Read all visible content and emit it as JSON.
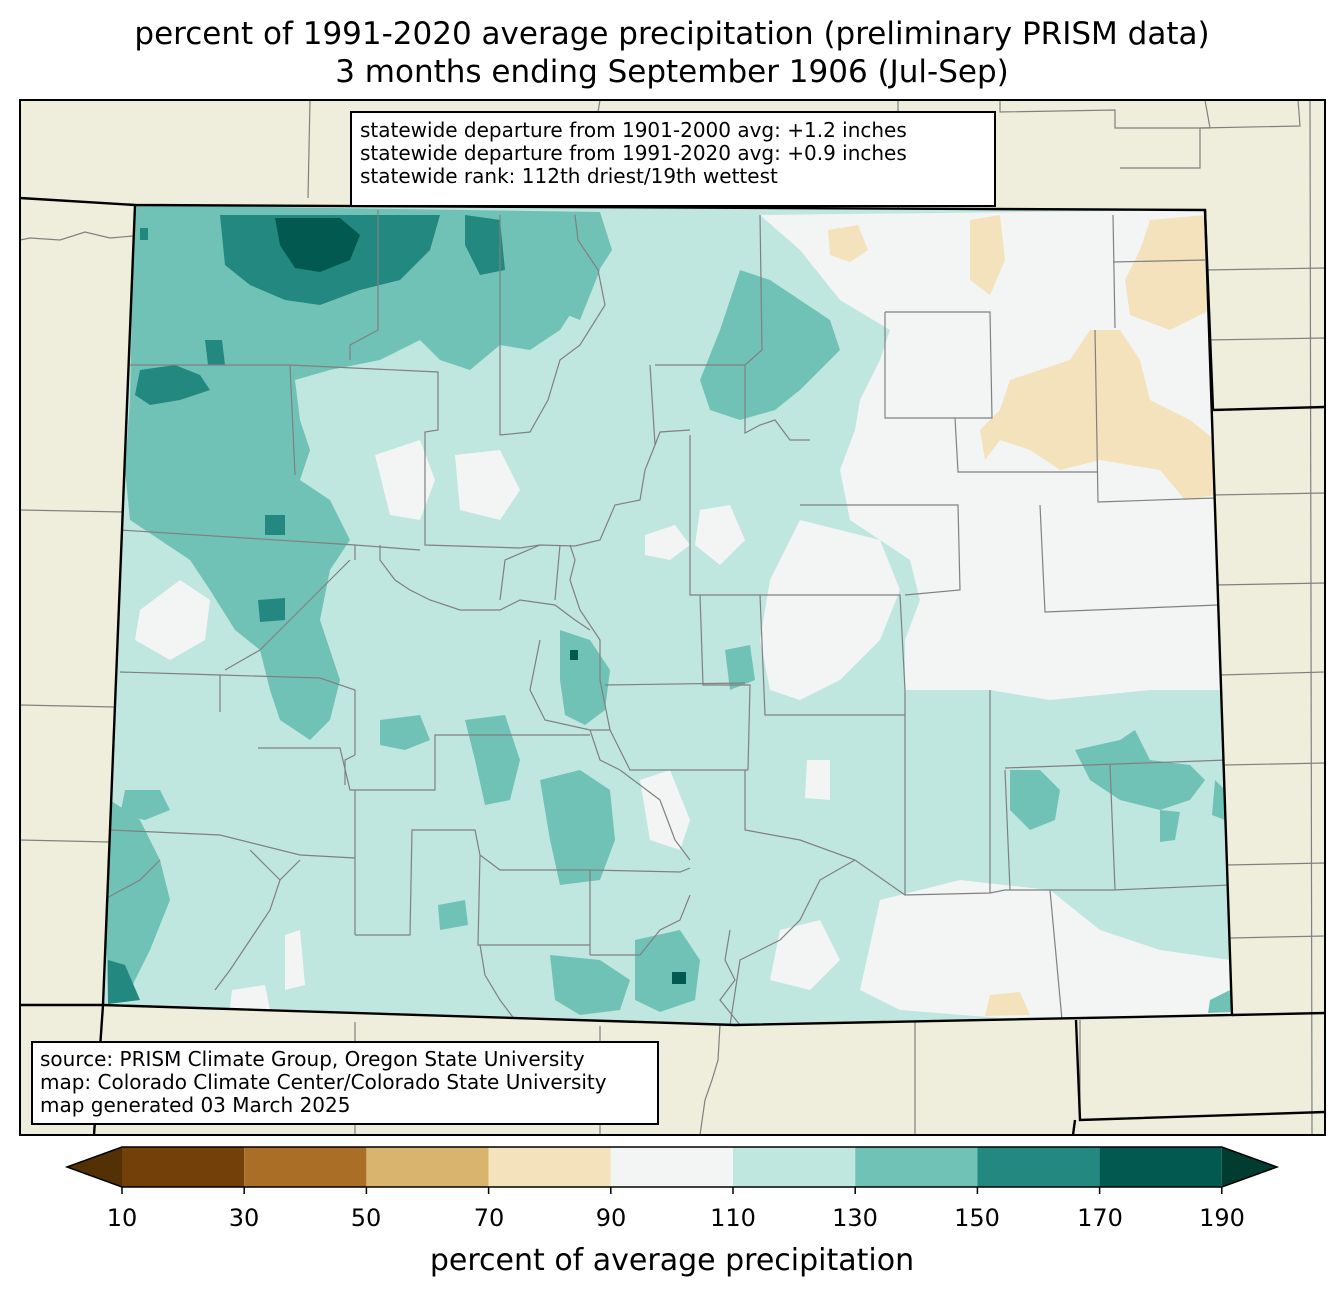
{
  "title": {
    "line1": "percent of 1991-2020 average precipitation (preliminary PRISM data)",
    "line2": "3 months ending September 1906 (Jul-Sep)"
  },
  "stats": {
    "line1": "statewide departure from 1901-2000 avg: +1.2 inches",
    "line2": "statewide departure from 1991-2020 avg: +0.9 inches",
    "line3": "statewide rank: 112th driest/19th wettest"
  },
  "credits": {
    "line1": "source: PRISM Climate Group, Oregon State University",
    "line2": "map: Colorado Climate Center/Colorado State University",
    "line3": "map generated 03 March 2025"
  },
  "colorbar": {
    "label": "percent of average precipitation",
    "ticks": [
      "10",
      "30",
      "50",
      "70",
      "90",
      "110",
      "130",
      "150",
      "170",
      "190"
    ],
    "colors": {
      "under": "#543005",
      "b10_30": "#744009",
      "b30_50": "#aa6e26",
      "b50_70": "#d8b46f",
      "b70_90": "#f3e2bb",
      "b90_110": "#f3f5f4",
      "b110_130": "#c0e6e0",
      "b130_150": "#71c2b6",
      "b150_170": "#228880",
      "b170_190": "#01594f",
      "over": "#003c30"
    }
  },
  "map_colors": {
    "land_outside": "#efeedc",
    "state_border": "#000000",
    "county_border": "#808080"
  }
}
